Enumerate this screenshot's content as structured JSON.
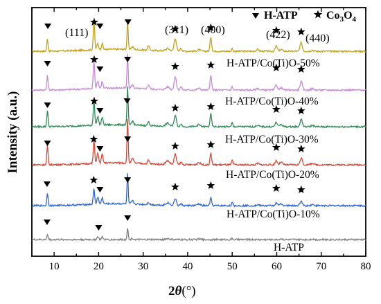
{
  "chart_data": {
    "type": "line",
    "xlabel_prefix": "2",
    "xlabel_symbol": "θ",
    "xlabel_suffix": "(°)",
    "ylabel": "Intensity (a.u.)",
    "xlim": [
      5,
      80
    ],
    "x_ticks": [
      10,
      20,
      30,
      40,
      50,
      60,
      70,
      80
    ],
    "y_ticks_shown": false,
    "grid": false,
    "legend_position": "top-right",
    "legend": [
      {
        "marker": "triangle-down-icon",
        "label": "H-ATP"
      },
      {
        "marker": "star-icon",
        "label_main": "Co",
        "label_sub1": "3",
        "label_mid": "O",
        "label_sub2": "4"
      }
    ],
    "peak_indices": [
      {
        "label": "(111)",
        "x": 18.9
      },
      {
        "label": "(311)",
        "x": 37.2
      },
      {
        "label": "(400)",
        "x": 45.2
      },
      {
        "label": "(422)",
        "x": 59.9
      },
      {
        "label": "(440)",
        "x": 65.5
      }
    ],
    "series": [
      {
        "name": "H-ATP/Co(Ti)O-50%",
        "color": "#c4a21c",
        "base": 0.8,
        "scale": 0.28,
        "atp": 1.0,
        "co": 1.0,
        "tri": [
          8.6,
          20.3,
          26.6
        ],
        "stars": [
          19.0,
          37.2,
          45.2,
          59.9,
          65.5
        ]
      },
      {
        "name": "H-ATP/Co(Ti)O-40%",
        "color": "#c78ad6",
        "base": 1.0,
        "scale": 0.33,
        "atp": 1.0,
        "co": 0.85,
        "tri": [
          8.5,
          20.3,
          26.5
        ],
        "stars": [
          19.0,
          37.2,
          45.2,
          59.9,
          65.5
        ]
      },
      {
        "name": "H-ATP/Co(Ti)O-30%",
        "color": "#2e8b57",
        "base": 1.0,
        "scale": 0.33,
        "atp": 1.15,
        "co": 0.75,
        "tri": [
          8.5,
          20.3,
          26.4
        ],
        "stars": [
          19.0,
          37.2,
          45.2,
          59.9,
          65.5
        ]
      },
      {
        "name": "H-ATP/Co(Ti)O-20%",
        "color": "#d24b3a",
        "base": 1.0,
        "scale": 0.35,
        "atp": 1.25,
        "co": 0.65,
        "tri": [
          8.5,
          20.3,
          26.5
        ],
        "stars": [
          18.9,
          37.2,
          45.2,
          59.9,
          65.5
        ]
      },
      {
        "name": "H-ATP/Co(Ti)O-10%",
        "color": "#2f66d6",
        "base": 0.95,
        "scale": 0.3,
        "atp": 1.0,
        "co": 0.5,
        "tri": [
          8.4,
          20.3,
          26.5
        ],
        "stars": [
          18.9,
          37.2,
          45.2,
          59.9,
          65.5
        ]
      },
      {
        "name": "H-ATP",
        "color": "#808080",
        "base": 0.8,
        "scale": 0.12,
        "atp": 1.0,
        "co": 0.0,
        "tri": [
          8.4,
          20.0,
          26.5
        ],
        "stars": []
      }
    ]
  }
}
